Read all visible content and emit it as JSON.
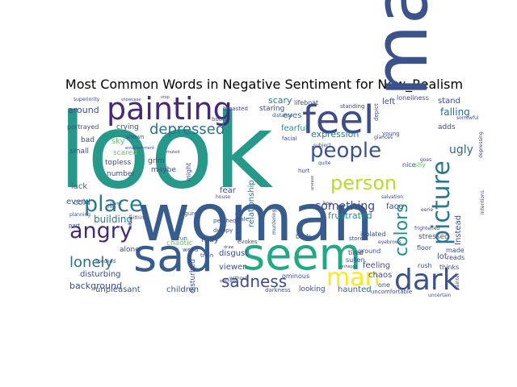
{
  "chart_data": {
    "type": "wordcloud",
    "title": "Most Common Words in Negative Sentiment for New_Realism",
    "background": "#ffffff",
    "colormap": "viridis",
    "palette": [
      "#440154",
      "#3b528b",
      "#21918c",
      "#5ec962",
      "#fde725"
    ],
    "words": [
      {
        "text": "look",
        "weight": 100,
        "orientation": "horizontal",
        "color": "#26998a"
      },
      {
        "text": "woman",
        "weight": 78,
        "orientation": "horizontal",
        "color": "#365d8d"
      },
      {
        "text": "make",
        "weight": 70,
        "orientation": "vertical",
        "color": "#3b528b"
      },
      {
        "text": "seem",
        "weight": 50,
        "orientation": "horizontal",
        "color": "#22a884"
      },
      {
        "text": "sad",
        "weight": 50,
        "orientation": "horizontal",
        "color": "#365d8d"
      },
      {
        "text": "feel",
        "weight": 42,
        "orientation": "horizontal",
        "color": "#3e4c8a"
      },
      {
        "text": "painting",
        "weight": 36,
        "orientation": "horizontal",
        "color": "#482878"
      },
      {
        "text": "dark",
        "weight": 33,
        "orientation": "horizontal",
        "color": "#3b528b"
      },
      {
        "text": "picture",
        "weight": 25,
        "orientation": "vertical",
        "color": "#2a788e"
      },
      {
        "text": "man",
        "weight": 25,
        "orientation": "horizontal",
        "color": "#fde725"
      },
      {
        "text": "place",
        "weight": 24,
        "orientation": "horizontal",
        "color": "#2a788e"
      },
      {
        "text": "angry",
        "weight": 24,
        "orientation": "horizontal",
        "color": "#482878"
      },
      {
        "text": "people",
        "weight": 22,
        "orientation": "horizontal",
        "color": "#3b528b"
      },
      {
        "text": "person",
        "weight": 20,
        "orientation": "horizontal",
        "color": "#b5de2b"
      },
      {
        "text": "colors",
        "weight": 19,
        "orientation": "vertical",
        "color": "#21918c"
      },
      {
        "text": "sadness",
        "weight": 17,
        "orientation": "horizontal",
        "color": "#3e4c8a"
      },
      {
        "text": "lonely",
        "weight": 16,
        "orientation": "horizontal",
        "color": "#2c728e"
      },
      {
        "text": "depressed",
        "weight": 16,
        "orientation": "horizontal",
        "color": "#2c728e"
      },
      {
        "text": "something",
        "weight": 12,
        "orientation": "horizontal",
        "color": "#3e4c8a"
      },
      {
        "text": "ugly",
        "weight": 11,
        "orientation": "horizontal",
        "color": "#31688e"
      },
      {
        "text": "falling",
        "weight": 10,
        "orientation": "horizontal",
        "color": "#31688e"
      },
      {
        "text": "building",
        "weight": 10,
        "orientation": "horizontal",
        "color": "#2a788e"
      },
      {
        "text": "background",
        "weight": 9,
        "orientation": "horizontal",
        "color": "#3e4c8a"
      },
      {
        "text": "expression",
        "weight": 9,
        "orientation": "horizontal",
        "color": "#2c728e"
      },
      {
        "text": "frustrated",
        "weight": 9,
        "orientation": "horizontal",
        "color": "#21918c"
      },
      {
        "text": "around",
        "weight": 9,
        "orientation": "horizontal",
        "color": "#3e4c8a"
      },
      {
        "text": "fearful",
        "weight": 9,
        "orientation": "horizontal",
        "color": "#21918c"
      },
      {
        "text": "scary",
        "weight": 8,
        "orientation": "horizontal",
        "color": "#2c728e"
      },
      {
        "text": "eyes",
        "weight": 8,
        "orientation": "horizontal",
        "color": "#2a788e"
      },
      {
        "text": "relationship",
        "weight": 8,
        "orientation": "vertical",
        "color": "#2a788e"
      },
      {
        "text": "disgust",
        "weight": 8,
        "orientation": "horizontal",
        "color": "#3e4c8a"
      },
      {
        "text": "disturbing",
        "weight": 8,
        "orientation": "horizontal",
        "color": "#3e4c8a"
      },
      {
        "text": "unpleasant",
        "weight": 8,
        "orientation": "horizontal",
        "color": "#3b528b"
      },
      {
        "text": "children",
        "weight": 8,
        "orientation": "horizontal",
        "color": "#3b528b"
      },
      {
        "text": "sky",
        "weight": 8,
        "orientation": "horizontal",
        "color": "#5ec962"
      },
      {
        "text": "cold",
        "weight": 8,
        "orientation": "horizontal",
        "color": "#2a788e"
      },
      {
        "text": "lack",
        "weight": 8,
        "orientation": "horizontal",
        "color": "#2c728e"
      },
      {
        "text": "even",
        "weight": 8,
        "orientation": "horizontal",
        "color": "#3b528b"
      },
      {
        "text": "fear",
        "weight": 8,
        "orientation": "horizontal",
        "color": "#3b528b"
      },
      {
        "text": "may",
        "weight": 7,
        "orientation": "horizontal",
        "color": "#3e4c8a"
      },
      {
        "text": "feeling",
        "weight": 7,
        "orientation": "horizontal",
        "color": "#3e4c8a"
      },
      {
        "text": "face",
        "weight": 7,
        "orientation": "horizontal",
        "color": "#3e4c8a"
      },
      {
        "text": "haunted",
        "weight": 7,
        "orientation": "horizontal",
        "color": "#31688e"
      },
      {
        "text": "chaos",
        "weight": 7,
        "orientation": "horizontal",
        "color": "#3e4c8a"
      },
      {
        "text": "viewer",
        "weight": 7,
        "orientation": "horizontal",
        "color": "#3b528b"
      },
      {
        "text": "left",
        "weight": 7,
        "orientation": "horizontal",
        "color": "#3e4c8a"
      },
      {
        "text": "lot",
        "weight": 7,
        "orientation": "horizontal",
        "color": "#3e4c8a"
      },
      {
        "text": "stand",
        "weight": 6,
        "orientation": "horizontal",
        "color": "#3e4c8a"
      },
      {
        "text": "Instead",
        "weight": 6,
        "orientation": "vertical",
        "color": "#3b528b"
      },
      {
        "text": "stressed",
        "weight": 6,
        "orientation": "horizontal",
        "color": "#3b528b"
      },
      {
        "text": "crying",
        "weight": 6,
        "orientation": "horizontal",
        "color": "#3e4c8a"
      },
      {
        "text": "scared",
        "weight": 6,
        "orientation": "horizontal",
        "color": "#5ec962"
      },
      {
        "text": "topless",
        "weight": 6,
        "orientation": "horizontal",
        "color": "#3e4c8a"
      },
      {
        "text": "grim",
        "weight": 6,
        "orientation": "horizontal",
        "color": "#3e4c8a"
      },
      {
        "text": "maybe",
        "weight": 6,
        "orientation": "horizontal",
        "color": "#3e4c8a"
      },
      {
        "text": "number",
        "weight": 6,
        "orientation": "horizontal",
        "color": "#3e4c8a"
      },
      {
        "text": "staring",
        "weight": 6,
        "orientation": "horizontal",
        "color": "#3e4c8a"
      },
      {
        "text": "small",
        "weight": 6,
        "orientation": "horizontal",
        "color": "#3e4c8a"
      },
      {
        "text": "bad",
        "weight": 6,
        "orientation": "horizontal",
        "color": "#3e4c8a"
      },
      {
        "text": "alone",
        "weight": 6,
        "orientation": "horizontal",
        "color": "#3e4c8a"
      },
      {
        "text": "chaotic",
        "weight": 6,
        "orientation": "horizontal",
        "color": "#5ec962"
      },
      {
        "text": "looking",
        "weight": 6,
        "orientation": "horizontal",
        "color": "#3e4c8a"
      },
      {
        "text": "ominous",
        "weight": 5,
        "orientation": "horizontal",
        "color": "#3e4c8a"
      },
      {
        "text": "darkness",
        "weight": 5,
        "orientation": "horizontal",
        "color": "#3e4c8a"
      },
      {
        "text": "disturbed",
        "weight": 5,
        "orientation": "vertical",
        "color": "#3e4c8a"
      },
      {
        "text": "might",
        "weight": 5,
        "orientation": "vertical",
        "color": "#3e4c8a"
      },
      {
        "text": "nice",
        "weight": 5,
        "orientation": "horizontal",
        "color": "#3e4c8a"
      },
      {
        "text": "shy",
        "weight": 5,
        "orientation": "horizontal",
        "color": "#5ec962"
      },
      {
        "text": "adds",
        "weight": 5,
        "orientation": "horizontal",
        "color": "#3e4c8a"
      },
      {
        "text": "ground",
        "weight": 5,
        "orientation": "horizontal",
        "color": "#3e4c8a"
      },
      {
        "text": "floor",
        "weight": 5,
        "orientation": "horizontal",
        "color": "#3e4c8a"
      },
      {
        "text": "made",
        "weight": 5,
        "orientation": "horizontal",
        "color": "#3e4c8a"
      },
      {
        "text": "reads",
        "weight": 5,
        "orientation": "horizontal",
        "color": "#3e4c8a"
      },
      {
        "text": "thinks",
        "weight": 5,
        "orientation": "horizontal",
        "color": "#3e4c8a"
      },
      {
        "text": "rush",
        "weight": 5,
        "orientation": "horizontal",
        "color": "#3e4c8a"
      },
      {
        "text": "one",
        "weight": 5,
        "orientation": "horizontal",
        "color": "#3e4c8a"
      },
      {
        "text": "uncomfortable",
        "weight": 5,
        "orientation": "horizontal",
        "color": "#3e4c8a"
      },
      {
        "text": "lifeboat",
        "weight": 5,
        "orientation": "horizontal",
        "color": "#3e4c8a"
      },
      {
        "text": "loneliness",
        "weight": 5,
        "orientation": "horizontal",
        "color": "#3e4c8a"
      },
      {
        "text": "portrayed",
        "weight": 5,
        "orientation": "horizontal",
        "color": "#3e4c8a"
      },
      {
        "text": "shown",
        "weight": 4,
        "orientation": "horizontal",
        "color": "#3e4c8a"
      },
      {
        "text": "tired",
        "weight": 5,
        "orientation": "horizontal",
        "color": "#3e4c8a"
      },
      {
        "text": "sullen",
        "weight": 5,
        "orientation": "horizontal",
        "color": "#3e4c8a"
      },
      {
        "text": "isolated",
        "weight": 5,
        "orientation": "horizontal",
        "color": "#3e4c8a"
      },
      {
        "text": "birds",
        "weight": 5,
        "orientation": "horizontal",
        "color": "#3e4c8a"
      },
      {
        "text": "store",
        "weight": 4,
        "orientation": "horizontal",
        "color": "#3e4c8a"
      },
      {
        "text": "evokes",
        "weight": 4,
        "orientation": "horizontal",
        "color": "#3e4c8a"
      },
      {
        "text": "pale",
        "weight": 4,
        "orientation": "horizontal",
        "color": "#3e4c8a"
      },
      {
        "text": "train",
        "weight": 4,
        "orientation": "horizontal",
        "color": "#3e4c8a"
      },
      {
        "text": "weird",
        "weight": 4,
        "orientation": "horizontal",
        "color": "#3e4c8a"
      },
      {
        "text": "run",
        "weight": 4,
        "orientation": "horizontal",
        "color": "#3e4c8a"
      },
      {
        "text": "figure",
        "weight": 4,
        "orientation": "horizontal",
        "color": "#3e4c8a"
      },
      {
        "text": "perched",
        "weight": 4,
        "orientation": "horizontal",
        "color": "#3e4c8a"
      },
      {
        "text": "dumpy",
        "weight": 4,
        "orientation": "horizontal",
        "color": "#3e4c8a"
      },
      {
        "text": "breasted",
        "weight": 4,
        "orientation": "horizontal",
        "color": "#3e4c8a"
      },
      {
        "text": "spooked",
        "weight": 4,
        "orientation": "horizontal",
        "color": "#3e4c8a"
      },
      {
        "text": "planning",
        "weight": 4,
        "orientation": "horizontal",
        "color": "#3e4c8a"
      },
      {
        "text": "part",
        "weight": 4,
        "orientation": "horizontal",
        "color": "#3e4c8a"
      },
      {
        "text": "within",
        "weight": 4,
        "orientation": "horizontal",
        "color": "#3e4c8a"
      },
      {
        "text": "young",
        "weight": 4,
        "orientation": "horizontal",
        "color": "#3e4c8a"
      },
      {
        "text": "standing",
        "weight": 4,
        "orientation": "horizontal",
        "color": "#3e4c8a"
      },
      {
        "text": "subject",
        "weight": 4,
        "orientation": "horizontal",
        "color": "#3e4c8a"
      },
      {
        "text": "hurt",
        "weight": 4,
        "orientation": "horizontal",
        "color": "#3e4c8a"
      },
      {
        "text": "boy",
        "weight": 4,
        "orientation": "horizontal",
        "color": "#3e4c8a"
      },
      {
        "text": "boots",
        "weight": 4,
        "orientation": "horizontal",
        "color": "#3e4c8a"
      },
      {
        "text": "facial",
        "weight": 4,
        "orientation": "horizontal",
        "color": "#3e4c8a"
      },
      {
        "text": "distance",
        "weight": 4,
        "orientation": "horizontal",
        "color": "#3e4c8a"
      },
      {
        "text": "eyebrows",
        "weight": 3,
        "orientation": "horizontal",
        "color": "#3e4c8a"
      },
      {
        "text": "eerie",
        "weight": 3,
        "orientation": "horizontal",
        "color": "#3e4c8a"
      },
      {
        "text": "salvation",
        "weight": 3,
        "orientation": "horizontal",
        "color": "#3e4c8a"
      },
      {
        "text": "glances",
        "weight": 3,
        "orientation": "horizontal",
        "color": "#3e4c8a"
      },
      {
        "text": "goes",
        "weight": 3,
        "orientation": "horizontal",
        "color": "#3e4c8a"
      },
      {
        "text": "sorrowful",
        "weight": 3,
        "orientation": "horizontal",
        "color": "#3e4c8a"
      },
      {
        "text": "frightened",
        "weight": 3,
        "orientation": "horizontal",
        "color": "#3e4c8a"
      },
      {
        "text": "depressing",
        "weight": 3,
        "orientation": "vertical",
        "color": "#3e4c8a"
      },
      {
        "text": "intentions",
        "weight": 3,
        "orientation": "vertical",
        "color": "#3e4c8a"
      },
      {
        "text": "uncertain",
        "weight": 3,
        "orientation": "horizontal",
        "color": "#3e4c8a"
      },
      {
        "text": "painter",
        "weight": 3,
        "orientation": "vertical",
        "color": "#3e4c8a"
      },
      {
        "text": "depict",
        "weight": 3,
        "orientation": "vertical",
        "color": "#3e4c8a"
      },
      {
        "text": "quite",
        "weight": 3,
        "orientation": "horizontal",
        "color": "#3e4c8a"
      },
      {
        "text": "draw",
        "weight": 3,
        "orientation": "horizontal",
        "color": "#3e4c8a"
      },
      {
        "text": "ordinary",
        "weight": 3,
        "orientation": "horizontal",
        "color": "#3e4c8a"
      },
      {
        "text": "without",
        "weight": 3,
        "orientation": "horizontal",
        "color": "#3e4c8a"
      },
      {
        "text": "troubled",
        "weight": 3,
        "orientation": "vertical",
        "color": "#3e4c8a"
      },
      {
        "text": "muted",
        "weight": 3,
        "orientation": "horizontal",
        "color": "#3e4c8a"
      },
      {
        "text": "scene",
        "weight": 3,
        "orientation": "horizontal",
        "color": "#3e4c8a"
      },
      {
        "text": "stop",
        "weight": 3,
        "orientation": "horizontal",
        "color": "#3e4c8a"
      },
      {
        "text": "flee",
        "weight": 3,
        "orientation": "horizontal",
        "color": "#3e4c8a"
      },
      {
        "text": "house",
        "weight": 3,
        "orientation": "horizontal",
        "color": "#3e4c8a"
      },
      {
        "text": "unease",
        "weight": 3,
        "orientation": "vertical",
        "color": "#3e4c8a"
      },
      {
        "text": "distress",
        "weight": 3,
        "orientation": "vertical",
        "color": "#3e4c8a"
      },
      {
        "text": "murdering",
        "weight": 3,
        "orientation": "vertical",
        "color": "#3e4c8a"
      },
      {
        "text": "superiority",
        "weight": 3,
        "orientation": "horizontal",
        "color": "#3e4c8a"
      },
      {
        "text": "showcase",
        "weight": 3,
        "orientation": "horizontal",
        "color": "#3e4c8a"
      },
      {
        "text": "entertainment",
        "weight": 3,
        "orientation": "horizontal",
        "color": "#3e4c8a"
      },
      {
        "text": "unhappy",
        "weight": 3,
        "orientation": "horizontal",
        "color": "#3e4c8a"
      }
    ]
  }
}
